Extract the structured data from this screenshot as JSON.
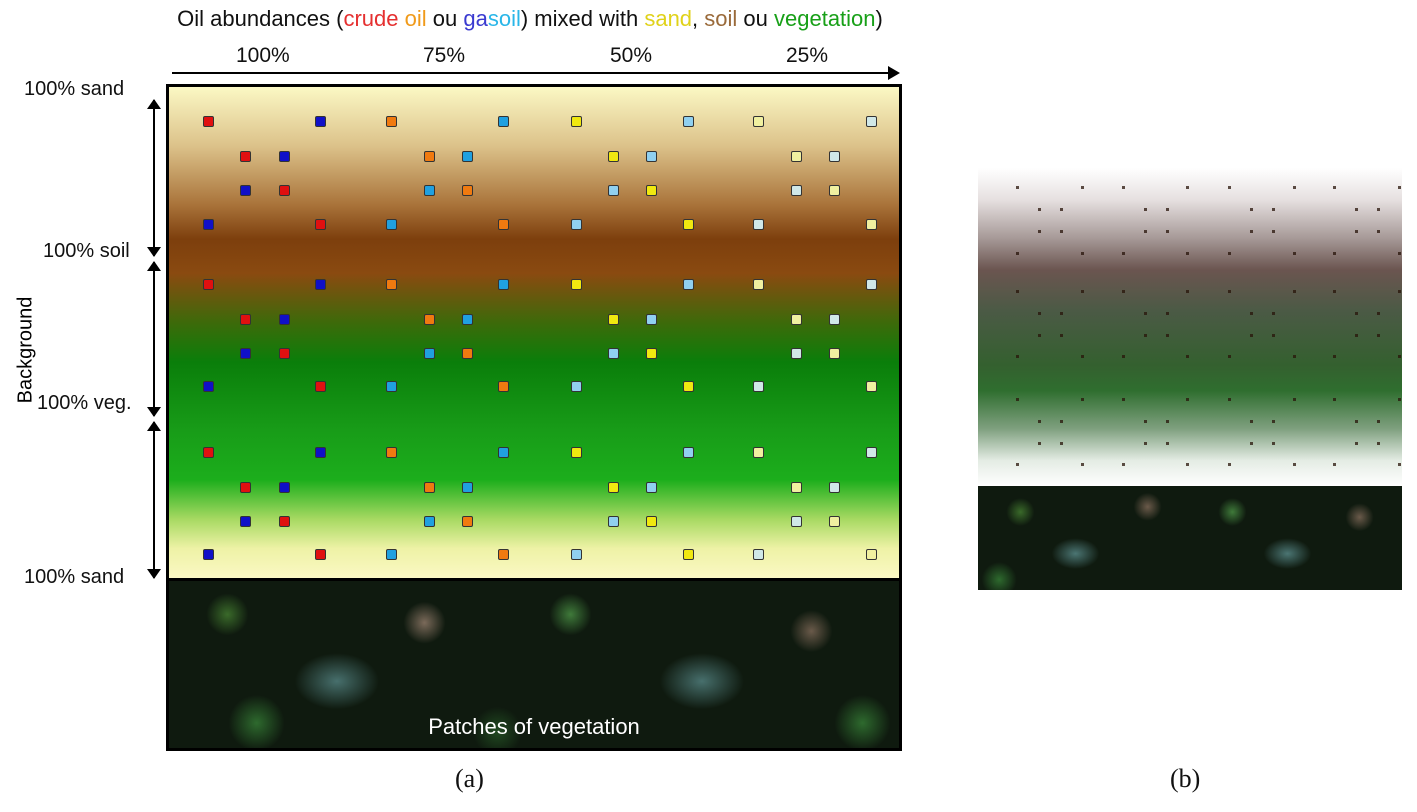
{
  "title": {
    "parts": [
      {
        "text": "Oil abundances (",
        "color": "#111111"
      },
      {
        "text": "crude oil",
        "color": "#e53030",
        "segments": [
          {
            "text": "crude ",
            "color": "#e53030"
          },
          {
            "text": "oil",
            "color": "#f09a1a"
          }
        ]
      },
      {
        "text": " ou ",
        "color": "#111111"
      },
      {
        "text": "gasoil",
        "color": "#3a3ad0",
        "segments": [
          {
            "text": "ga",
            "color": "#3a3ad0"
          },
          {
            "text": "soil",
            "color": "#29b6e8"
          }
        ]
      },
      {
        "text": ") mixed with ",
        "color": "#111111"
      },
      {
        "text": "sand",
        "color": "#e0d21a"
      },
      {
        "text": ", ",
        "color": "#111111"
      },
      {
        "text": "soil",
        "color": "#9a6a3a"
      },
      {
        "text": " ou ",
        "color": "#111111"
      },
      {
        "text": "vegetation",
        "color": "#18a018"
      },
      {
        "text": ")",
        "color": "#111111"
      }
    ]
  },
  "oil_percentages": [
    "100%",
    "75%",
    "50%",
    "25%"
  ],
  "background": {
    "label": "Background",
    "rows": [
      "100% sand",
      "100% soil",
      "100% veg.",
      "100% sand"
    ]
  },
  "vegetation_label": "Patches of vegetation",
  "captions": {
    "a": "(a)",
    "b": "(b)"
  },
  "oil_colors": {
    "crude_100": "#e01010",
    "gasoil_100": "#1010c8",
    "crude_75": "#f07a10",
    "gasoil_75": "#20a0e0",
    "crude_50": "#f0e810",
    "gasoil_50": "#90d0f0",
    "crude_25": "#f0f0a0",
    "gasoil_25": "#d0e8e8"
  }
}
